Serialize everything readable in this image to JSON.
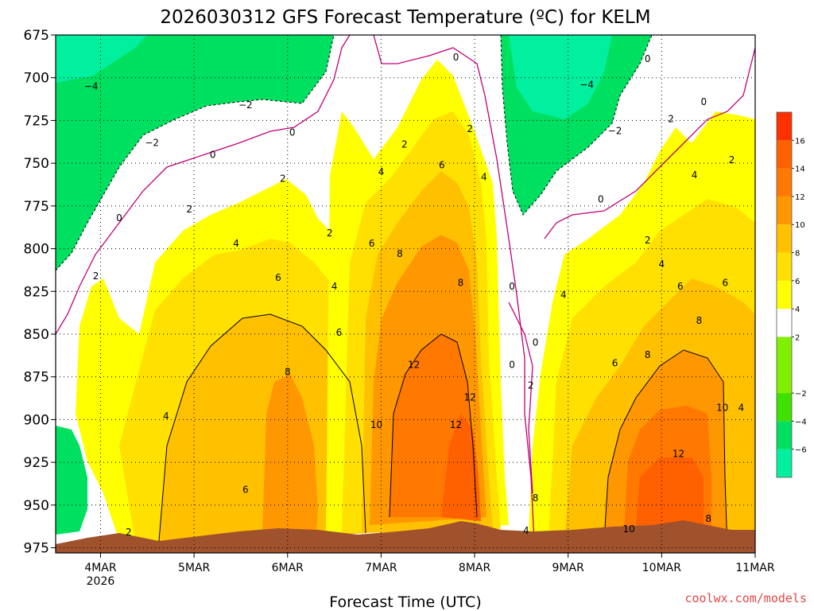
{
  "chart_data": {
    "type": "contour",
    "title": "2026030312 GFS Forecast Temperature (ºC) for KELM",
    "xlabel": "Forecast Time (UTC)",
    "credit": "coolwx.com/models",
    "y_ticks": [
      "675",
      "700",
      "725",
      "750",
      "775",
      "800",
      "825",
      "850",
      "875",
      "900",
      "925",
      "950",
      "975"
    ],
    "y_values": [
      675,
      700,
      725,
      750,
      775,
      800,
      825,
      850,
      875,
      900,
      925,
      950,
      975
    ],
    "ylim": [
      675,
      978
    ],
    "y_reversed": true,
    "x_ticks": [
      {
        "day": 4,
        "label": "4MAR",
        "sublabel": "2026"
      },
      {
        "day": 5,
        "label": "5MAR"
      },
      {
        "day": 6,
        "label": "6MAR"
      },
      {
        "day": 7,
        "label": "7MAR"
      },
      {
        "day": 8,
        "label": "8MAR"
      },
      {
        "day": 9,
        "label": "9MAR"
      },
      {
        "day": 10,
        "label": "10MAR"
      },
      {
        "day": 11,
        "label": "11MAR"
      }
    ],
    "xlim": [
      3.52,
      11.0
    ],
    "grid": true,
    "colorbar": {
      "levels": [
        -8,
        -6,
        -4,
        -2,
        2,
        4,
        6,
        8,
        10,
        12,
        14,
        16,
        18
      ],
      "labels": [
        "−6",
        "−4",
        "−2",
        "2",
        "4",
        "6",
        "8",
        "10",
        "12",
        "14",
        "16"
      ],
      "label_values": [
        -6,
        -4,
        -2,
        2,
        4,
        6,
        8,
        10,
        12,
        14,
        16
      ],
      "colors": [
        "#00f0a0",
        "#00e060",
        "#40e000",
        "#80f000",
        "#ffffff",
        "#ffff00",
        "#ffe000",
        "#ffc000",
        "#ff9800",
        "#ff7800",
        "#ff6000",
        "#ff3000"
      ]
    },
    "terrain_color": "#a0522d",
    "contour_labels": [
      {
        "text": "−4",
        "day": 3.9,
        "p": 705
      },
      {
        "text": "−2",
        "day": 5.55,
        "p": 716
      },
      {
        "text": "−2",
        "day": 4.55,
        "p": 738
      },
      {
        "text": "0",
        "day": 4.2,
        "p": 782
      },
      {
        "text": "0",
        "day": 5.2,
        "p": 745
      },
      {
        "text": "0",
        "day": 6.05,
        "p": 732
      },
      {
        "text": "0",
        "day": 7.8,
        "p": 688
      },
      {
        "text": "2",
        "day": 3.95,
        "p": 816
      },
      {
        "text": "2",
        "day": 4.95,
        "p": 777
      },
      {
        "text": "2",
        "day": 5.95,
        "p": 759
      },
      {
        "text": "2",
        "day": 6.45,
        "p": 791
      },
      {
        "text": "4",
        "day": 5.45,
        "p": 797
      },
      {
        "text": "4",
        "day": 6.5,
        "p": 822
      },
      {
        "text": "4",
        "day": 4.7,
        "p": 898
      },
      {
        "text": "6",
        "day": 5.9,
        "p": 817
      },
      {
        "text": "6",
        "day": 6.55,
        "p": 849
      },
      {
        "text": "8",
        "day": 6.0,
        "p": 872
      },
      {
        "text": "6",
        "day": 5.55,
        "p": 941
      },
      {
        "text": "2",
        "day": 4.3,
        "p": 966
      },
      {
        "text": "2",
        "day": 7.25,
        "p": 739
      },
      {
        "text": "4",
        "day": 7.0,
        "p": 755
      },
      {
        "text": "6",
        "day": 6.9,
        "p": 797
      },
      {
        "text": "8",
        "day": 7.2,
        "p": 803
      },
      {
        "text": "6",
        "day": 7.65,
        "p": 751
      },
      {
        "text": "2",
        "day": 7.95,
        "p": 730
      },
      {
        "text": "4",
        "day": 8.1,
        "p": 758
      },
      {
        "text": "8",
        "day": 7.85,
        "p": 820
      },
      {
        "text": "12",
        "day": 7.35,
        "p": 868
      },
      {
        "text": "12",
        "day": 7.95,
        "p": 887
      },
      {
        "text": "12",
        "day": 7.8,
        "p": 903
      },
      {
        "text": "10",
        "day": 6.95,
        "p": 903
      },
      {
        "text": "0",
        "day": 8.4,
        "p": 822
      },
      {
        "text": "0",
        "day": 8.4,
        "p": 868
      },
      {
        "text": "0",
        "day": 8.65,
        "p": 855
      },
      {
        "text": "2",
        "day": 8.6,
        "p": 880
      },
      {
        "text": "4",
        "day": 8.95,
        "p": 827
      },
      {
        "text": "8",
        "day": 8.65,
        "p": 946
      },
      {
        "text": "4",
        "day": 8.55,
        "p": 965
      },
      {
        "text": "−4",
        "day": 9.2,
        "p": 704
      },
      {
        "text": "−2",
        "day": 9.5,
        "p": 731
      },
      {
        "text": "0",
        "day": 9.35,
        "p": 771
      },
      {
        "text": "2",
        "day": 9.85,
        "p": 795
      },
      {
        "text": "4",
        "day": 10.0,
        "p": 809
      },
      {
        "text": "6",
        "day": 9.5,
        "p": 867
      },
      {
        "text": "8",
        "day": 9.85,
        "p": 862
      },
      {
        "text": "6",
        "day": 10.2,
        "p": 822
      },
      {
        "text": "8",
        "day": 10.4,
        "p": 842
      },
      {
        "text": "0",
        "day": 9.85,
        "p": 689
      },
      {
        "text": "2",
        "day": 10.1,
        "p": 724
      },
      {
        "text": "0",
        "day": 10.45,
        "p": 714
      },
      {
        "text": "4",
        "day": 10.35,
        "p": 757
      },
      {
        "text": "2",
        "day": 10.75,
        "p": 748
      },
      {
        "text": "6",
        "day": 10.68,
        "p": 820
      },
      {
        "text": "10",
        "day": 10.65,
        "p": 893
      },
      {
        "text": "4",
        "day": 10.85,
        "p": 893
      },
      {
        "text": "12",
        "day": 10.18,
        "p": 920
      },
      {
        "text": "10",
        "day": 9.65,
        "p": 964
      },
      {
        "text": "8",
        "day": 10.5,
        "p": 958
      }
    ]
  }
}
